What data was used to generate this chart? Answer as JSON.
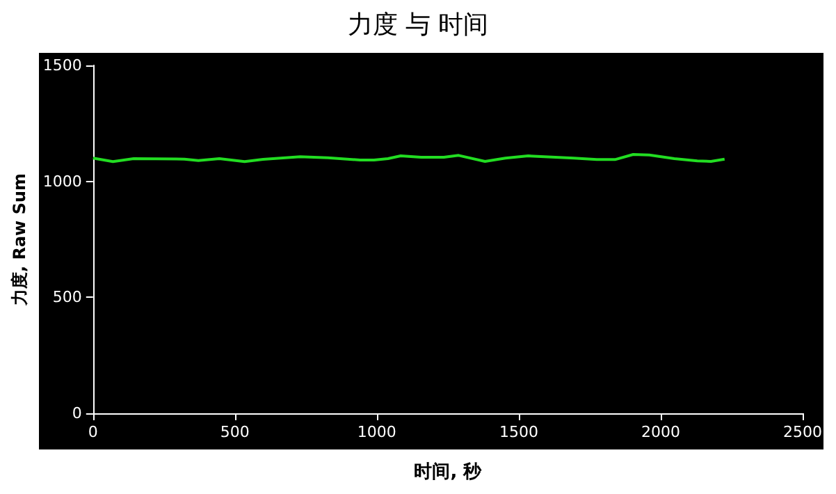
{
  "chart_data": {
    "type": "line",
    "title": "力度 与 时间",
    "xlabel": "时间, 秒",
    "ylabel": "力度, Raw Sum",
    "x": [
      0,
      70,
      143,
      322,
      371,
      445,
      534,
      599,
      730,
      827,
      941,
      990,
      1039,
      1084,
      1156,
      1236,
      1288,
      1381,
      1453,
      1533,
      1694,
      1775,
      1839,
      1903,
      1960,
      2048,
      2129,
      2177,
      2225
    ],
    "series": [
      {
        "color": "#22dd22",
        "values": [
          1100,
          1085,
          1098,
          1096,
          1090,
          1098,
          1085,
          1095,
          1106,
          1102,
          1092,
          1092,
          1098,
          1110,
          1104,
          1104,
          1112,
          1086,
          1100,
          1110,
          1100,
          1094,
          1094,
          1116,
          1114,
          1098,
          1088,
          1086,
          1096
        ]
      }
    ],
    "xlim": [
      0,
      2500
    ],
    "xticks": [
      0,
      500,
      1000,
      1500,
      2000,
      2500
    ],
    "ylim": [
      0,
      1500
    ],
    "yticks": [
      0,
      500,
      1000,
      1500
    ],
    "grid": false,
    "marker": "none",
    "line_style": "solid"
  }
}
